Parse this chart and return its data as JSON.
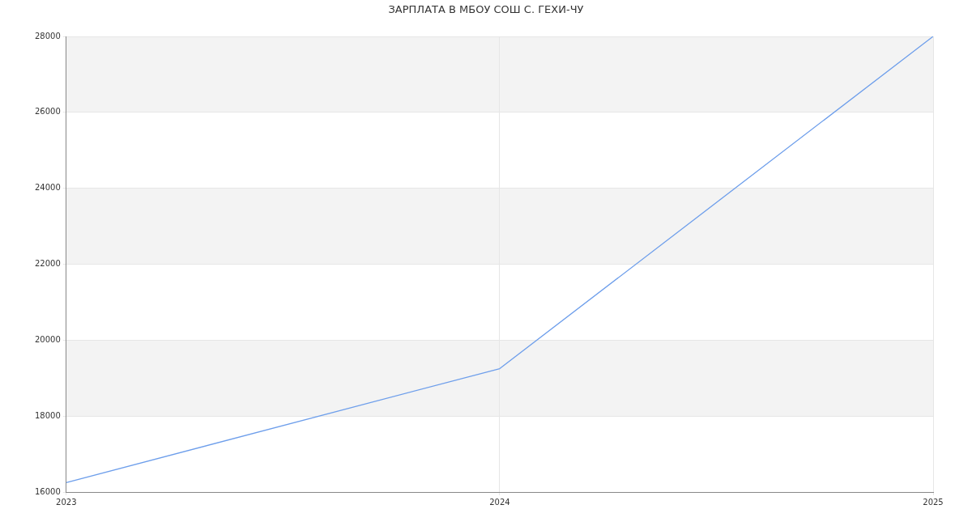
{
  "chart_data": {
    "type": "line",
    "title": "ЗАРПЛАТА В МБОУ СОШ С. ГЕХИ-ЧУ",
    "x": [
      2023,
      2024,
      2025
    ],
    "series": [
      {
        "color": "#6d9eeb",
        "values": [
          16250,
          19250,
          28000
        ]
      }
    ],
    "xlim": [
      2023,
      2025
    ],
    "xticks": [
      2023,
      2024,
      2025
    ],
    "ylim": [
      16000,
      28000
    ],
    "yticks": [
      16000,
      18000,
      20000,
      22000,
      24000,
      26000,
      28000
    ],
    "bands": [
      {
        "axis": "y",
        "from": 18000,
        "to": 20000,
        "color": "#f3f3f3"
      },
      {
        "axis": "y",
        "from": 22000,
        "to": 24000,
        "color": "#f3f3f3"
      },
      {
        "axis": "y",
        "from": 26000,
        "to": 28000,
        "color": "#f3f3f3"
      }
    ],
    "grid": true,
    "legend": false,
    "marker": "none",
    "line_style": "solid"
  }
}
